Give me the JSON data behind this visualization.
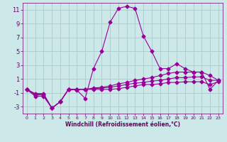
{
  "xlabel": "Windchill (Refroidissement éolien,°C)",
  "x": [
    0,
    1,
    2,
    3,
    4,
    5,
    6,
    7,
    8,
    9,
    10,
    11,
    12,
    13,
    14,
    15,
    16,
    17,
    18,
    19,
    20,
    21,
    22,
    23
  ],
  "line1": [
    -0.5,
    -1.5,
    -1.5,
    -3.2,
    -2.3,
    -0.5,
    -0.6,
    -1.8,
    2.5,
    5.0,
    9.2,
    11.2,
    11.5,
    11.2,
    7.2,
    5.0,
    2.5,
    2.5,
    3.2,
    2.5,
    2.0,
    2.0,
    -0.5,
    0.8
  ],
  "line2": [
    -0.5,
    -1.3,
    -1.3,
    -3.2,
    -2.3,
    -0.5,
    -0.5,
    -0.5,
    -0.3,
    -0.2,
    0.0,
    0.3,
    0.5,
    0.8,
    1.0,
    1.2,
    1.5,
    1.8,
    2.0,
    2.0,
    2.0,
    2.0,
    1.5,
    0.8
  ],
  "line3": [
    -0.5,
    -1.2,
    -1.2,
    -3.2,
    -2.3,
    -0.5,
    -0.5,
    -0.5,
    -0.4,
    -0.3,
    -0.2,
    0.0,
    0.2,
    0.4,
    0.5,
    0.7,
    0.8,
    1.0,
    1.2,
    1.2,
    1.3,
    1.3,
    0.8,
    0.8
  ],
  "line4": [
    -0.5,
    -1.1,
    -1.1,
    -3.2,
    -2.3,
    -0.5,
    -0.5,
    -0.5,
    -0.5,
    -0.5,
    -0.5,
    -0.4,
    -0.2,
    0.0,
    0.2,
    0.2,
    0.3,
    0.5,
    0.5,
    0.6,
    0.6,
    0.6,
    0.2,
    0.6
  ],
  "line_color": "#990099",
  "bg_color": "#cce8e8",
  "grid_color": "#aacccc",
  "text_color": "#660066",
  "ylim": [
    -4,
    12
  ],
  "yticks": [
    -3,
    -1,
    1,
    3,
    5,
    7,
    9,
    11
  ],
  "xlim": [
    -0.5,
    23.5
  ],
  "xticks": [
    0,
    1,
    2,
    3,
    4,
    5,
    6,
    7,
    8,
    9,
    10,
    11,
    12,
    13,
    14,
    15,
    16,
    17,
    18,
    19,
    20,
    21,
    22,
    23
  ],
  "marker": "D",
  "markersize": 2.5,
  "linewidth": 0.8,
  "tick_fontsize_x": 4.5,
  "tick_fontsize_y": 6.0,
  "xlabel_fontsize": 5.5
}
